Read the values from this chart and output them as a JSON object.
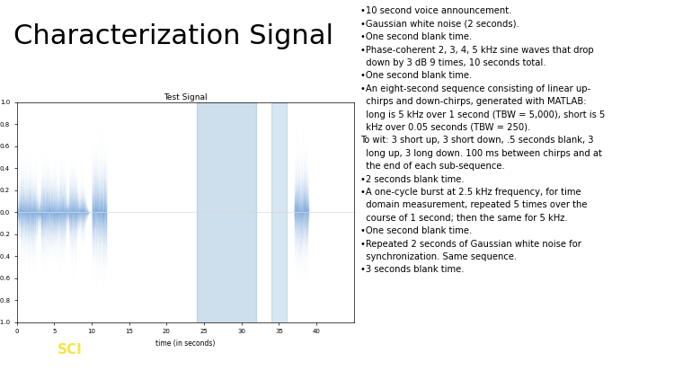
{
  "title_text": "Characterization Signal",
  "title_fontsize": 22,
  "plot_title": "Test Signal",
  "xlabel": "time (in seconds)",
  "xlim": [
    0,
    45
  ],
  "ylim": [
    -1,
    1
  ],
  "yticks": [
    -1.0,
    -0.8,
    -0.6,
    -0.4,
    -0.2,
    0.0,
    0.2,
    0.4,
    0.6,
    0.8,
    1.0
  ],
  "xticks": [
    0,
    5,
    10,
    15,
    20,
    25,
    30,
    35,
    40
  ],
  "signal_color": "#1565c0",
  "light_blue_color": "#90b8d8",
  "footer_bg": "#4a5c6e",
  "seed": 42,
  "bullet_lines": [
    "•10 second voice announcement.",
    "•Gaussian white noise (2 seconds).",
    "•One second blank time.",
    "•Phase-coherent 2, 3, 4, 5 kHz sine waves that drop",
    "  down by 3 dB 9 times, 10 seconds total.",
    "•One second blank time.",
    "•An eight-second sequence consisting of linear up-",
    "  chirps and down-chirps, generated with MATLAB:",
    "  long is 5 kHz over 1 second (TBW = 5,000), short is 5",
    "  kHz over 0.05 seconds (TBW = 250).",
    "To wit: 3 short up, 3 short down, .5 seconds blank, 3",
    "  long up, 3 long down. 100 ms between chirps and at",
    "  the end of each sub-sequence.",
    "•2 seconds blank time.",
    "•A one-cycle burst at 2.5 kHz frequency, for time",
    "  domain measurement, repeated 5 times over the",
    "  course of 1 second; then the same for 5 kHz.",
    "•One second blank time.",
    "•Repeated 2 seconds of Gaussian white noise for",
    "  synchronization. Same sequence.",
    "•3 seconds blank time."
  ]
}
